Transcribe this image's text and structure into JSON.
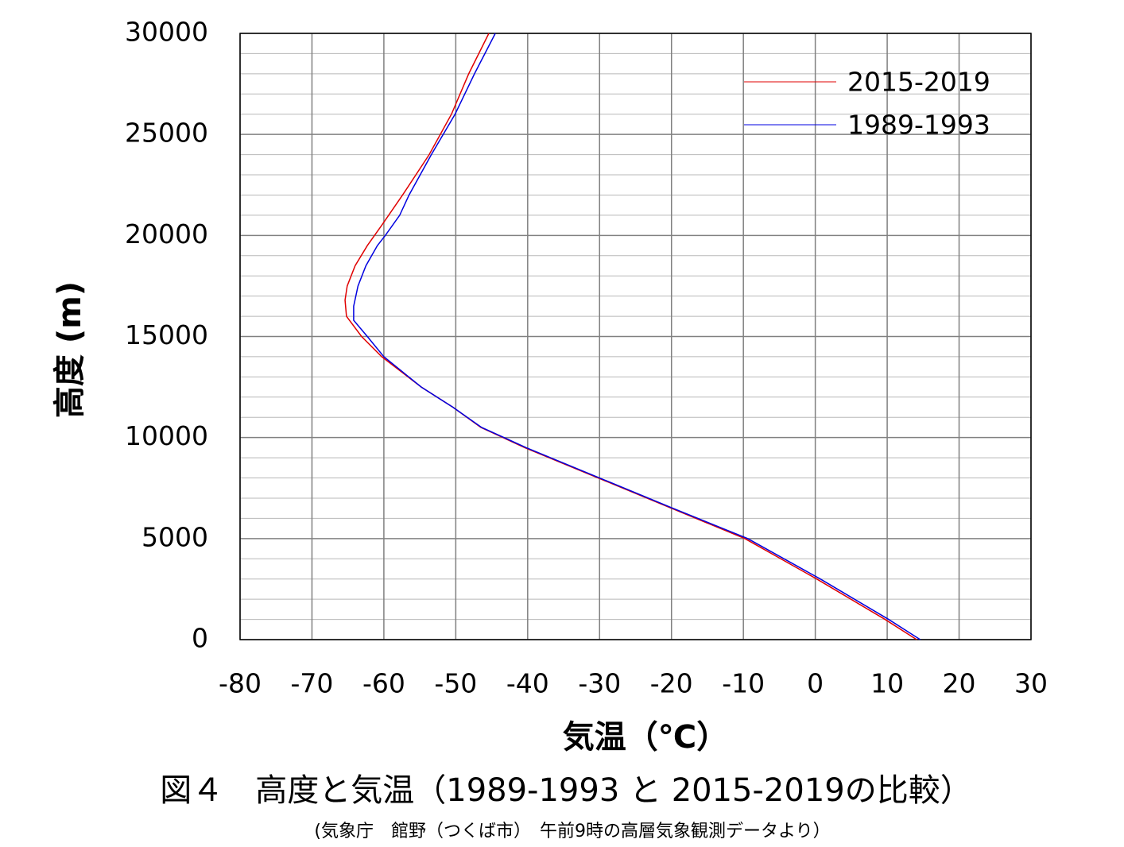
{
  "chart_data": {
    "type": "line",
    "title": "図４　高度と気温（1989-1993 と 2015-2019の比較）",
    "subtitle": "(気象庁　館野（つくば市）　午前9時の高層気象観測データより）",
    "xlabel": "気温（℃）",
    "ylabel": "高度 (m)",
    "xlim": [
      -80,
      30
    ],
    "xticks": [
      -80,
      -70,
      -60,
      -50,
      -40,
      -30,
      -20,
      -10,
      0,
      10,
      20,
      30
    ],
    "ylim": [
      0,
      30000
    ],
    "yticks": [
      0,
      5000,
      10000,
      15000,
      20000,
      25000,
      30000
    ],
    "yminorticks": [
      1000,
      2000,
      3000,
      4000,
      6000,
      7000,
      8000,
      9000,
      11000,
      12000,
      13000,
      14000,
      16000,
      17000,
      18000,
      19000,
      21000,
      22000,
      23000,
      24000,
      26000,
      27000,
      28000,
      29000
    ],
    "grid": true,
    "legend": "upper right",
    "series": [
      {
        "name": "2015-2019",
        "color": "#e00000",
        "x": [
          14.1,
          9.7,
          0.2,
          -9.8,
          -20,
          -30.2,
          -40.4,
          -46.5,
          -50.4,
          -54.8,
          -60.3,
          -63.1,
          -65.2,
          -65.4,
          -65.1,
          -64,
          -62.3,
          -60.3,
          -57.4,
          -53.7,
          -50.6,
          -48.2,
          -45.4
        ],
        "values": [
          0,
          1000,
          3000,
          5000,
          6500,
          8000,
          9500,
          10500,
          11500,
          12500,
          14000,
          15000,
          16000,
          16800,
          17500,
          18500,
          19500,
          20500,
          22000,
          24000,
          26000,
          28000,
          30000
        ]
      },
      {
        "name": "1989-1993",
        "color": "#0000e0",
        "x": [
          14.6,
          10.2,
          0.7,
          -9.4,
          -19.8,
          -30,
          -40.2,
          -46.4,
          -50.4,
          -54.8,
          -60,
          -62.3,
          -64.2,
          -64.2,
          -63.6,
          -62.5,
          -60.9,
          -59.8,
          -57.8,
          -56.5,
          -53.4,
          -50.1,
          -47.4,
          -44.5
        ],
        "values": [
          0,
          1000,
          3000,
          5000,
          6500,
          8000,
          9500,
          10500,
          11500,
          12500,
          14000,
          15000,
          15800,
          16500,
          17500,
          18500,
          19500,
          20000,
          21000,
          22000,
          24000,
          26000,
          28000,
          30000
        ]
      }
    ]
  }
}
